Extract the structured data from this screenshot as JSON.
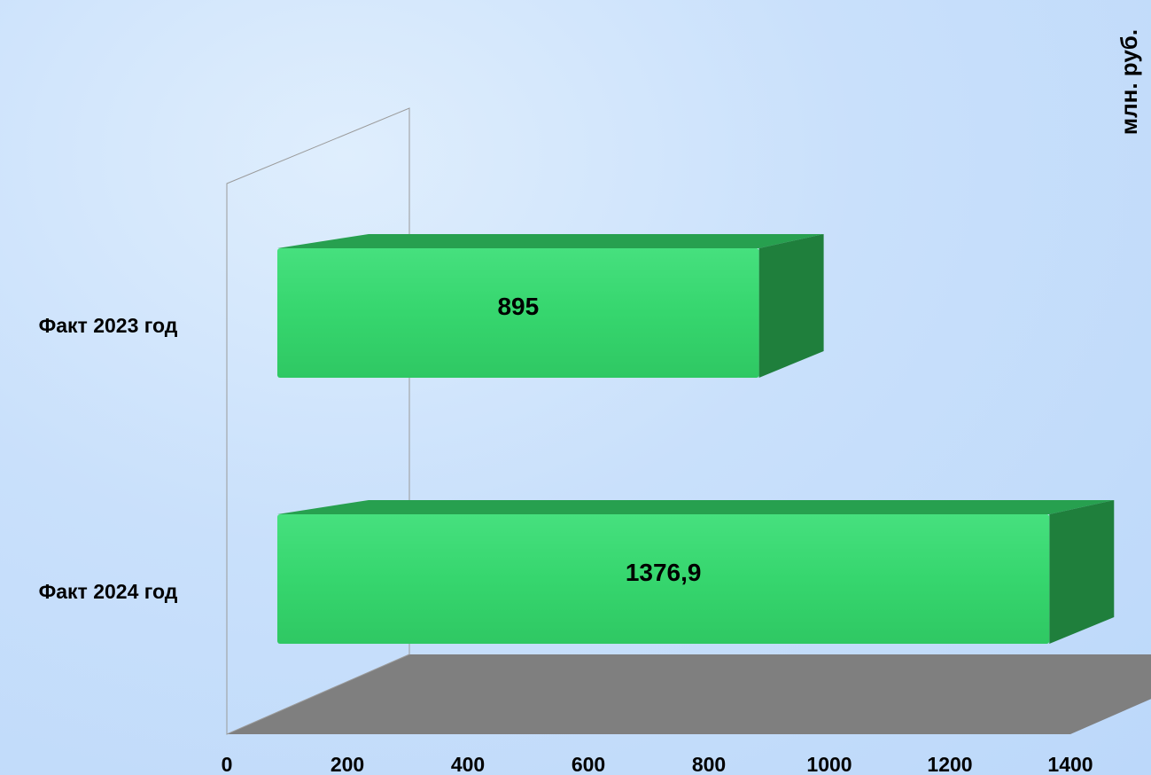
{
  "chart_data": {
    "type": "bar",
    "orientation": "horizontal",
    "three_d": true,
    "unit_label": "млн. руб.",
    "categories": [
      "Факт 2023 год",
      "Факт 2024 год"
    ],
    "values": [
      895,
      1376.9
    ],
    "data_labels": [
      "895",
      "1376,9"
    ],
    "xlim": [
      0,
      1400
    ],
    "x_ticks": [
      "0",
      "200",
      "400",
      "600",
      "800",
      "1000",
      "1200",
      "1400"
    ],
    "title": "",
    "xlabel": "",
    "ylabel": "",
    "grid": false,
    "legend": "none",
    "colors": {
      "bar_front": "#36d66e",
      "bar_top": "#27a04f",
      "bar_side": "#1f7f3c",
      "floor": "#7f7f7f",
      "text": "#000000"
    }
  }
}
